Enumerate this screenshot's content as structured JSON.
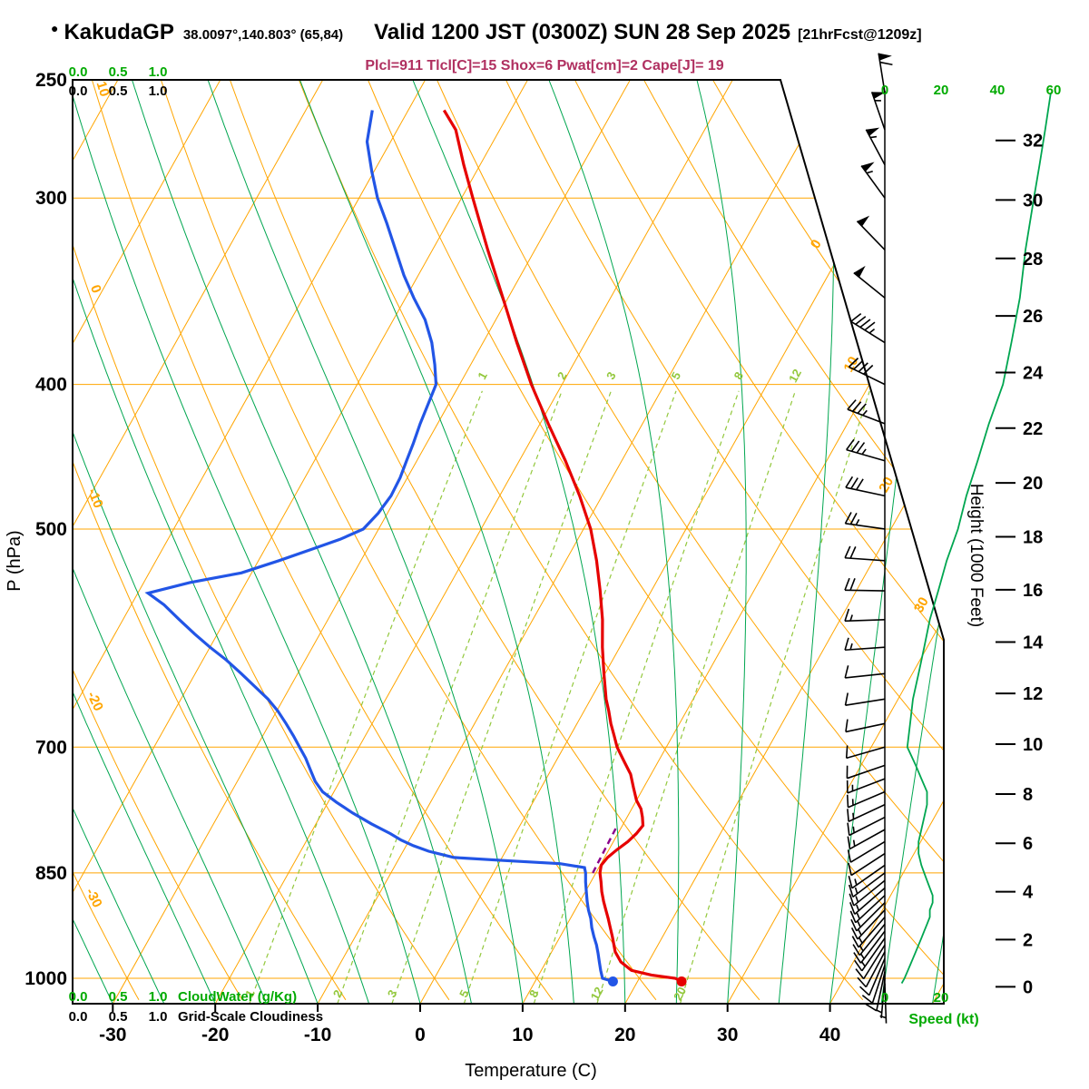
{
  "header": {
    "bullet": "●",
    "station": "KakudaGP",
    "coords": "38.0097°,140.803° (65,84)",
    "valid_title": "Valid 1200 JST (0300Z) SUN 28 Sep 2025",
    "forecast_tag": "[21hrFcst@1209z]",
    "stats": "Plcl=911 Tlcl[C]=15 Shox=6 Pwat[cm]=2 Cape[J]= 19"
  },
  "axes": {
    "pressure_label": "P (hPa)",
    "pressure_ticks": [
      250,
      300,
      400,
      500,
      700,
      850,
      1000
    ],
    "temp_label": "Temperature (C)",
    "temp_ticks": [
      -30,
      -20,
      -10,
      0,
      10,
      20,
      30,
      40
    ],
    "height_label": "Height (1000 Feet)",
    "height_ticks": [
      0,
      2,
      4,
      6,
      8,
      10,
      12,
      14,
      16,
      18,
      20,
      22,
      24,
      26,
      28,
      30,
      32
    ],
    "speed_label": "Speed (kt)",
    "speed_ticks_top": [
      0,
      20,
      40,
      60
    ],
    "speed_ticks_bottom": [
      0,
      20
    ],
    "cloudwater_label": "CloudWater (g/Kg)",
    "cloudwater_ticks": [
      "0.0",
      "0.5",
      "1.0"
    ],
    "cloudiness_label": "Grid-Scale Cloudiness",
    "cloudiness_ticks": [
      "0.0",
      "0.5",
      "1.0"
    ],
    "dry_adiabat_labels": [
      10,
      0,
      -10,
      -20,
      -30
    ],
    "isotherm_diagonal_labels": [
      0,
      10,
      20,
      30
    ]
  },
  "colors": {
    "grid_orange": "#FFA500",
    "moist_adiabat_green": "#00A650",
    "mixing_ratio_green": "#93C83D",
    "scale_green": "#00AA00",
    "temperature": "#E60000",
    "dewpoint": "#2255E6",
    "parcel": "#8B008B",
    "wind_speed_curve": "#00A650",
    "barb_black": "#000000",
    "stats_text": "#B03060",
    "border_black": "#000000"
  },
  "chart_data": {
    "type": "line",
    "chart_kind": "skew-t log-p sounding",
    "title": "KakudaGP Valid 1200 JST (0300Z) SUN 28 Sep 2025",
    "pressure_range_hPa": [
      250,
      1040
    ],
    "temp_axis_range_C": [
      -30,
      40
    ],
    "isobar_lines_hPa": [
      300,
      400,
      500,
      700,
      850,
      1000
    ],
    "isotherm_step_C": 10,
    "dry_adiabat_step_C": 10,
    "moist_adiabat_step_C": 5,
    "mixing_ratio_g_per_kg": [
      1,
      2,
      3,
      5,
      8,
      12,
      20
    ],
    "legend_position": "none",
    "grid": true,
    "series": [
      {
        "name": "temperature_C",
        "color_key": "temperature",
        "points": [
          [
            1005,
            24.3
          ],
          [
            1000,
            23.5
          ],
          [
            995,
            21.0
          ],
          [
            988,
            18.8
          ],
          [
            975,
            17.3
          ],
          [
            960,
            16.2
          ],
          [
            950,
            15.7
          ],
          [
            938,
            15.1
          ],
          [
            925,
            14.4
          ],
          [
            912,
            13.7
          ],
          [
            900,
            13.0
          ],
          [
            888,
            12.3
          ],
          [
            875,
            11.6
          ],
          [
            862,
            11.0
          ],
          [
            850,
            10.4
          ],
          [
            840,
            10.1
          ],
          [
            830,
            10.3
          ],
          [
            820,
            10.8
          ],
          [
            810,
            11.4
          ],
          [
            800,
            11.8
          ],
          [
            790,
            12.0
          ],
          [
            780,
            11.5
          ],
          [
            770,
            10.9
          ],
          [
            760,
            10.0
          ],
          [
            745,
            9.0
          ],
          [
            730,
            8.0
          ],
          [
            715,
            6.6
          ],
          [
            700,
            5.2
          ],
          [
            688,
            4.3
          ],
          [
            675,
            3.3
          ],
          [
            662,
            2.4
          ],
          [
            650,
            1.5
          ],
          [
            625,
            -0.1
          ],
          [
            600,
            -1.7
          ],
          [
            575,
            -3.2
          ],
          [
            550,
            -5.0
          ],
          [
            525,
            -7.0
          ],
          [
            500,
            -9.3
          ],
          [
            475,
            -12.2
          ],
          [
            450,
            -15.5
          ],
          [
            425,
            -19.2
          ],
          [
            400,
            -23.0
          ],
          [
            375,
            -26.7
          ],
          [
            350,
            -30.5
          ],
          [
            325,
            -34.6
          ],
          [
            300,
            -38.9
          ],
          [
            285,
            -41.6
          ],
          [
            270,
            -44.3
          ],
          [
            262,
            -46.5
          ]
        ]
      },
      {
        "name": "dewpoint_C",
        "color_key": "dewpoint",
        "points": [
          [
            1005,
            17.6
          ],
          [
            1000,
            16.4
          ],
          [
            988,
            15.8
          ],
          [
            975,
            15.2
          ],
          [
            962,
            14.6
          ],
          [
            950,
            14.0
          ],
          [
            938,
            13.3
          ],
          [
            925,
            12.6
          ],
          [
            912,
            12.0
          ],
          [
            900,
            11.3
          ],
          [
            888,
            10.7
          ],
          [
            875,
            10.1
          ],
          [
            862,
            9.5
          ],
          [
            850,
            9.0
          ],
          [
            843,
            8.6
          ],
          [
            838,
            6.0
          ],
          [
            834,
            0.5
          ],
          [
            830,
            -4.7
          ],
          [
            822,
            -7.5
          ],
          [
            815,
            -9.3
          ],
          [
            808,
            -10.8
          ],
          [
            800,
            -12.2
          ],
          [
            788,
            -14.6
          ],
          [
            775,
            -17.0
          ],
          [
            762,
            -19.2
          ],
          [
            750,
            -21.1
          ],
          [
            738,
            -22.4
          ],
          [
            725,
            -23.5
          ],
          [
            712,
            -24.6
          ],
          [
            700,
            -25.8
          ],
          [
            688,
            -27.0
          ],
          [
            675,
            -28.4
          ],
          [
            662,
            -29.9
          ],
          [
            650,
            -31.5
          ],
          [
            638,
            -33.4
          ],
          [
            625,
            -35.5
          ],
          [
            612,
            -37.7
          ],
          [
            600,
            -40.0
          ],
          [
            588,
            -42.2
          ],
          [
            575,
            -44.5
          ],
          [
            562,
            -46.8
          ],
          [
            552,
            -49.0
          ],
          [
            543,
            -45.5
          ],
          [
            535,
            -41.0
          ],
          [
            525,
            -38.0
          ],
          [
            515,
            -35.2
          ],
          [
            508,
            -33.2
          ],
          [
            500,
            -31.5
          ],
          [
            488,
            -30.9
          ],
          [
            475,
            -30.6
          ],
          [
            462,
            -30.7
          ],
          [
            450,
            -31.0
          ],
          [
            438,
            -31.3
          ],
          [
            425,
            -31.7
          ],
          [
            412,
            -32.0
          ],
          [
            400,
            -32.3
          ],
          [
            388,
            -33.5
          ],
          [
            375,
            -35.0
          ],
          [
            362,
            -36.9
          ],
          [
            350,
            -39.2
          ],
          [
            338,
            -41.4
          ],
          [
            325,
            -43.6
          ],
          [
            312,
            -45.9
          ],
          [
            300,
            -48.2
          ],
          [
            288,
            -50.2
          ],
          [
            275,
            -52.3
          ],
          [
            262,
            -53.5
          ]
        ]
      },
      {
        "name": "parcel_path_C",
        "color_key": "parcel",
        "points": [
          [
            850,
            9.7
          ],
          [
            790,
            9.5
          ]
        ]
      },
      {
        "name": "wind_kt_dir",
        "color_key": "barb_black",
        "points": [
          [
            1008,
            6,
            178
          ],
          [
            1000,
            7,
            185
          ],
          [
            990,
            8,
            192
          ],
          [
            980,
            9,
            198
          ],
          [
            970,
            10,
            203
          ],
          [
            960,
            11,
            208
          ],
          [
            950,
            12,
            212
          ],
          [
            940,
            13,
            215
          ],
          [
            930,
            14,
            217
          ],
          [
            920,
            15,
            219
          ],
          [
            910,
            16,
            221
          ],
          [
            900,
            16,
            223
          ],
          [
            890,
            17,
            225
          ],
          [
            880,
            17,
            227
          ],
          [
            870,
            16,
            229
          ],
          [
            860,
            15,
            231
          ],
          [
            850,
            14,
            233
          ],
          [
            840,
            13,
            235
          ],
          [
            825,
            12,
            237
          ],
          [
            810,
            12,
            239
          ],
          [
            795,
            13,
            241
          ],
          [
            780,
            14,
            243
          ],
          [
            765,
            15,
            245
          ],
          [
            750,
            15,
            247
          ],
          [
            735,
            13,
            249
          ],
          [
            720,
            11,
            251
          ],
          [
            700,
            8,
            254
          ],
          [
            675,
            9,
            258
          ],
          [
            650,
            10,
            261
          ],
          [
            625,
            12,
            264
          ],
          [
            600,
            14,
            266
          ],
          [
            575,
            16,
            268
          ],
          [
            550,
            19,
            271
          ],
          [
            525,
            22,
            274
          ],
          [
            500,
            26,
            278
          ],
          [
            475,
            29,
            282
          ],
          [
            450,
            33,
            286
          ],
          [
            425,
            37,
            291
          ],
          [
            400,
            42,
            296
          ],
          [
            375,
            45,
            302
          ],
          [
            350,
            48,
            309
          ],
          [
            325,
            50,
            316
          ],
          [
            300,
            53,
            324
          ],
          [
            285,
            55,
            332
          ],
          [
            270,
            57,
            341
          ],
          [
            255,
            59,
            351
          ]
        ]
      }
    ],
    "surface_markers": [
      {
        "name": "surface-temperature-dot",
        "p": 1005,
        "value_C": 24.3
      },
      {
        "name": "surface-dewpoint-dot",
        "p": 1005,
        "value_C": 17.6
      }
    ]
  }
}
